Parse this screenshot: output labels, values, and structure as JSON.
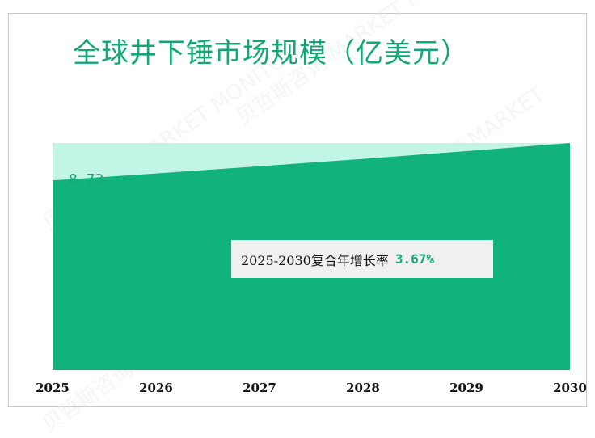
{
  "title": "全球井下锤市场规模（亿美元）",
  "chart_data": {
    "type": "area",
    "title": "全球井下锤市场规模（亿美元）",
    "x": [
      "2025",
      "2026",
      "2027",
      "2028",
      "2029",
      "2030"
    ],
    "series": [
      {
        "values": [
          8.73,
          9.05,
          9.38,
          9.72,
          10.08,
          10.45
        ]
      }
    ],
    "ylim": [
      0,
      10.45
    ],
    "annotations": {
      "start_value": "8.73",
      "cagr_label": "2025-2030复合年增长率",
      "cagr_value": "3.67%"
    },
    "colors": {
      "fill": "#12b27d",
      "background_fill": "#c2f5e6",
      "text_accent": "#12a874"
    },
    "grid": false
  },
  "watermark": "贝哲斯咨询 MARKET MONITOR"
}
